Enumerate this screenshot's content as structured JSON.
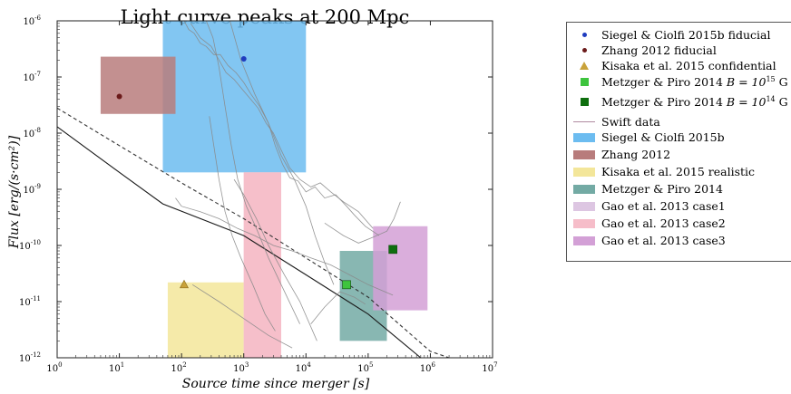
{
  "chart_data": {
    "type": "scatter",
    "title": "Light curve peaks at 200 Mpc",
    "xlabel": "Source time since merger [s]",
    "ylabel": "Flux [erg/(s·cm²)]",
    "xscale": "log",
    "yscale": "log",
    "xlim": [
      1,
      10000000
    ],
    "ylim": [
      1e-12,
      1e-06
    ],
    "x_tick_labels": [
      "10^0",
      "10^1",
      "10^2",
      "10^3",
      "10^4",
      "10^5",
      "10^6",
      "10^7"
    ],
    "y_tick_labels": [
      "10^-12",
      "10^-11",
      "10^-10",
      "10^-9",
      "10^-8",
      "10^-7",
      "10^-6"
    ],
    "grid": false,
    "legend_position": "outside-right",
    "points": [
      {
        "name": "Siegel & Ciolfi 2015b fiducial",
        "x": 1000,
        "y": 2.1e-07,
        "marker": "circle",
        "color": "#1f3cbf"
      },
      {
        "name": "Zhang 2012 fiducial",
        "x": 10,
        "y": 4.5e-08,
        "marker": "circle",
        "color": "#6b1a1a"
      },
      {
        "name": "Kisaka et al. 2015 confidential",
        "x": 110,
        "y": 2e-11,
        "marker": "triangle",
        "color": "#c9a23a"
      },
      {
        "name": "Metzger & Piro 2014 B = 10^15 G",
        "x": 45000,
        "y": 2e-11,
        "marker": "square",
        "color": "#3ec43e"
      },
      {
        "name": "Metzger & Piro 2014 B = 10^14 G",
        "x": 250000,
        "y": 8.5e-11,
        "marker": "square",
        "color": "#0e6e0e"
      }
    ],
    "regions": [
      {
        "name": "Siegel & Ciolfi 2015b",
        "x": [
          50,
          10000
        ],
        "y": [
          2e-09,
          1e-06
        ],
        "color": "#6cbcf0"
      },
      {
        "name": "Zhang 2012",
        "x": [
          5,
          80
        ],
        "y": [
          2.2e-08,
          2.3e-07
        ],
        "color": "#b87c7c"
      },
      {
        "name": "Kisaka et al. 2015 realistic",
        "x": [
          60,
          1000
        ],
        "y": [
          1e-12,
          2.2e-11
        ],
        "color": "#f3e69a"
      },
      {
        "name": "Metzger & Piro 2014",
        "x": [
          35000,
          200000
        ],
        "y": [
          2e-12,
          8e-11
        ],
        "color": "#73aaa4"
      },
      {
        "name": "Gao et al. 2013 case1",
        "x": [
          1000,
          4000
        ],
        "y": [
          1e-12,
          2e-09
        ],
        "color": "#f6bdc9"
      },
      {
        "name": "Gao et al. 2013 case2",
        "x": [
          1000,
          4000
        ],
        "y": [
          1e-12,
          2e-09
        ],
        "color": "#f6bdc9"
      },
      {
        "name": "Gao et al. 2013 case3",
        "x": [
          120000,
          900000
        ],
        "y": [
          7e-12,
          2.2e-10
        ],
        "color": "#d3a0d6"
      }
    ],
    "curves": [
      {
        "style": "solid",
        "color": "#1a1a1a",
        "points": [
          [
            1,
            1.3e-08
          ],
          [
            10,
            2e-09
          ],
          [
            50,
            5.5e-10
          ],
          [
            1000,
            1.5e-10
          ],
          [
            10000,
            3e-11
          ],
          [
            100000,
            6e-12
          ],
          [
            700000,
            1e-12
          ]
        ]
      },
      {
        "style": "dashed",
        "color": "#333333",
        "points": [
          [
            1,
            2.8e-08
          ],
          [
            10,
            6e-09
          ],
          [
            100,
            1.3e-09
          ],
          [
            1000,
            3e-10
          ],
          [
            10000,
            6e-11
          ],
          [
            100000,
            1.2e-11
          ],
          [
            1000000,
            1.3e-12
          ],
          [
            2000000,
            1e-12
          ]
        ]
      }
    ],
    "swift_data": {
      "name": "Swift data",
      "color": "#8a8a8a",
      "traces": [
        [
          [
            110,
            1e-06
          ],
          [
            130,
            7e-07
          ],
          [
            160,
            6e-07
          ],
          [
            200,
            4e-07
          ],
          [
            250,
            3.5e-07
          ],
          [
            330,
            2.5e-07
          ],
          [
            420,
            2.5e-07
          ],
          [
            560,
            1.6e-07
          ],
          [
            750,
            1.2e-07
          ],
          [
            1000,
            8e-08
          ],
          [
            1300,
            5e-08
          ],
          [
            1800,
            3e-08
          ],
          [
            2500,
            1.5e-08
          ],
          [
            3200,
            6e-09
          ],
          [
            4200,
            2.8e-09
          ],
          [
            5500,
            1.6e-09
          ],
          [
            7500,
            1.4e-09
          ],
          [
            10000,
            9e-10
          ],
          [
            14000,
            1.1e-09
          ],
          [
            20000,
            7e-10
          ],
          [
            30000,
            8e-10
          ],
          [
            45000,
            5e-10
          ],
          [
            60000,
            3.5e-10
          ],
          [
            90000,
            2.2e-10
          ],
          [
            150000,
            1.5e-10
          ]
        ],
        [
          [
            140,
            9e-07
          ],
          [
            200,
            5e-07
          ],
          [
            300,
            3.5e-07
          ],
          [
            400,
            2e-07
          ],
          [
            520,
            1.2e-07
          ],
          [
            700,
            9e-08
          ],
          [
            950,
            6e-08
          ],
          [
            1300,
            4e-08
          ],
          [
            1700,
            2.8e-08
          ],
          [
            2300,
            1.5e-08
          ],
          [
            3000,
            1e-08
          ],
          [
            4000,
            5e-09
          ],
          [
            5500,
            2.4e-09
          ],
          [
            8000,
            1.5e-09
          ],
          [
            12000,
            1.1e-09
          ],
          [
            17000,
            1.3e-09
          ],
          [
            25000,
            9e-10
          ],
          [
            40000,
            6e-10
          ],
          [
            70000,
            4e-10
          ],
          [
            120000,
            2e-10
          ]
        ],
        [
          [
            250,
            1e-06
          ],
          [
            320,
            5e-07
          ],
          [
            400,
            1.5e-07
          ],
          [
            500,
            3e-08
          ],
          [
            630,
            6e-09
          ],
          [
            800,
            1.5e-09
          ],
          [
            1100,
            5e-10
          ],
          [
            1600,
            2e-10
          ],
          [
            2500,
            6e-11
          ],
          [
            4000,
            2e-11
          ],
          [
            8000,
            4e-12
          ]
        ],
        [
          [
            280,
            2e-08
          ],
          [
            330,
            6e-09
          ],
          [
            400,
            1.5e-09
          ],
          [
            500,
            4e-10
          ],
          [
            650,
            1.5e-10
          ],
          [
            900,
            6e-11
          ],
          [
            1400,
            2e-11
          ],
          [
            2200,
            6e-12
          ],
          [
            3200,
            3e-12
          ]
        ],
        [
          [
            600,
            1e-06
          ],
          [
            900,
            2e-07
          ],
          [
            1500,
            5e-08
          ],
          [
            2500,
            1.5e-08
          ],
          [
            4000,
            4e-09
          ],
          [
            6500,
            1.5e-09
          ],
          [
            10000,
            5e-10
          ],
          [
            14000,
            1.5e-10
          ],
          [
            20000,
            5e-11
          ],
          [
            28000,
            2e-11
          ]
        ],
        [
          [
            80,
            7e-10
          ],
          [
            100,
            5e-10
          ],
          [
            200,
            4e-10
          ],
          [
            400,
            3e-10
          ],
          [
            800,
            2e-10
          ],
          [
            1500,
            1.5e-10
          ],
          [
            3000,
            1e-10
          ],
          [
            6000,
            8e-11
          ],
          [
            12000,
            6e-11
          ],
          [
            25000,
            4.5e-11
          ],
          [
            50000,
            3e-11
          ],
          [
            100000,
            2e-11
          ],
          [
            250000,
            1.3e-11
          ]
        ],
        [
          [
            150,
            2e-11
          ],
          [
            400,
            1e-11
          ],
          [
            1000,
            5e-12
          ],
          [
            2500,
            2.5e-12
          ],
          [
            6000,
            1.5e-12
          ]
        ],
        [
          [
            700,
            1.5e-09
          ],
          [
            1000,
            8e-10
          ],
          [
            1600,
            3e-10
          ],
          [
            2500,
            1e-10
          ],
          [
            4500,
            3e-11
          ],
          [
            8000,
            1e-11
          ],
          [
            15000,
            2e-12
          ]
        ],
        [
          [
            20000,
            2.5e-10
          ],
          [
            40000,
            1.5e-10
          ],
          [
            70000,
            1.1e-10
          ],
          [
            120000,
            1.4e-10
          ],
          [
            200000,
            1.8e-10
          ],
          [
            260000,
            3e-10
          ],
          [
            330000,
            6e-10
          ]
        ],
        [
          [
            12000,
            4e-12
          ],
          [
            20000,
            8e-12
          ],
          [
            35000,
            1.5e-11
          ],
          [
            60000,
            1.2e-11
          ],
          [
            90000,
            9e-12
          ]
        ]
      ]
    }
  },
  "legend": {
    "items": [
      {
        "label_pre": "Siegel & Ciolfi 2015b fiducial",
        "label_base": "",
        "label_sup": "",
        "label_post": "",
        "kind": "circle",
        "color": "#1f3cbf"
      },
      {
        "label_pre": "Zhang 2012 fiducial",
        "label_base": "",
        "label_sup": "",
        "label_post": "",
        "kind": "circle",
        "color": "#6b1a1a"
      },
      {
        "label_pre": "Kisaka et al. 2015 confidential",
        "label_base": "",
        "label_sup": "",
        "label_post": "",
        "kind": "triangle",
        "color": "#c9a23a"
      },
      {
        "label_pre": "Metzger & Piro 2014 ",
        "label_base": "B = 10",
        "label_sup": "15",
        "label_post": " G",
        "kind": "square",
        "color": "#3ec43e"
      },
      {
        "label_pre": "Metzger & Piro 2014 ",
        "label_base": "B = 10",
        "label_sup": "14",
        "label_post": " G",
        "kind": "square",
        "color": "#0e6e0e"
      },
      {
        "label_pre": "Swift data",
        "label_base": "",
        "label_sup": "",
        "label_post": "",
        "kind": "line",
        "color": "#b08aa0"
      },
      {
        "label_pre": "Siegel & Ciolfi 2015b",
        "label_base": "",
        "label_sup": "",
        "label_post": "",
        "kind": "patch",
        "color": "#6cbcf0"
      },
      {
        "label_pre": "Zhang 2012",
        "label_base": "",
        "label_sup": "",
        "label_post": "",
        "kind": "patch",
        "color": "#b87c7c"
      },
      {
        "label_pre": "Kisaka et al. 2015 realistic",
        "label_base": "",
        "label_sup": "",
        "label_post": "",
        "kind": "patch",
        "color": "#f3e69a"
      },
      {
        "label_pre": "Metzger & Piro 2014",
        "label_base": "",
        "label_sup": "",
        "label_post": "",
        "kind": "patch",
        "color": "#73aaa4"
      },
      {
        "label_pre": "Gao et al. 2013 case1",
        "label_base": "",
        "label_sup": "",
        "label_post": "",
        "kind": "patch",
        "color": "#ddc6e2"
      },
      {
        "label_pre": "Gao et al. 2013 case2",
        "label_base": "",
        "label_sup": "",
        "label_post": "",
        "kind": "patch",
        "color": "#f6bdc9"
      },
      {
        "label_pre": "Gao et al. 2013 case3",
        "label_base": "",
        "label_sup": "",
        "label_post": "",
        "kind": "patch",
        "color": "#d3a0d6"
      }
    ]
  }
}
